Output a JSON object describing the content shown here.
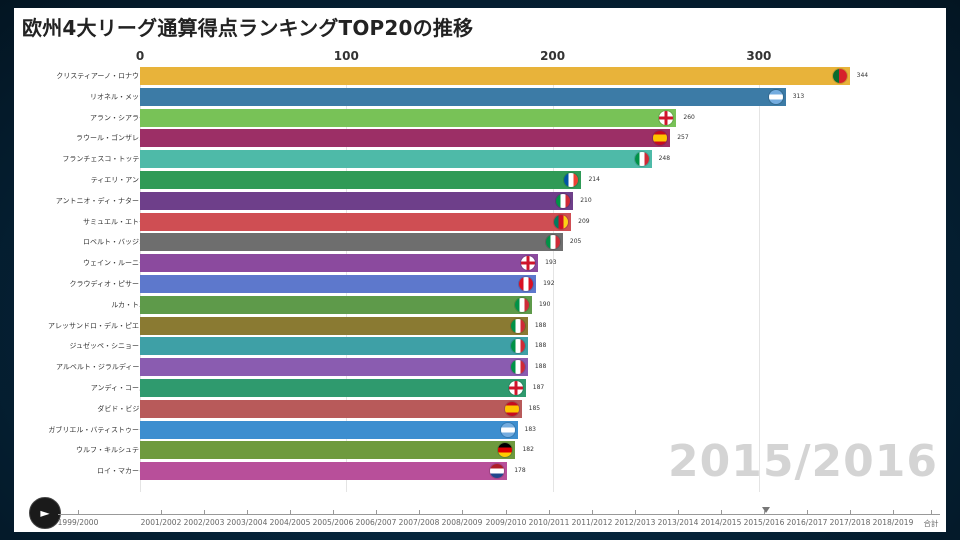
{
  "page": {
    "title": "欧州4大リーグ通算得点ランキングTOP20の推移",
    "current_period": "2015/2016"
  },
  "timeline": {
    "labels": [
      "1999/2000",
      "2001/2002",
      "2002/2003",
      "2003/2004",
      "2004/2005",
      "2005/2006",
      "2006/2007",
      "2007/2008",
      "2008/2009",
      "2009/2010",
      "2010/2011",
      "2011/2012",
      "2012/2013",
      "2013/2014",
      "2014/2015",
      "2015/2016",
      "2016/2017",
      "2017/2018",
      "2018/2019",
      "合計"
    ],
    "play_icon": "play-icon"
  },
  "chart_data": {
    "type": "bar",
    "orientation": "horizontal",
    "title": "欧州4大リーグ通算得点ランキングTOP20の推移",
    "xlim": [
      0,
      344
    ],
    "xticks": [
      0,
      100,
      200,
      300
    ],
    "grid": true,
    "period_label": "2015/2016",
    "categories": [
      "クリスティアーノ・ロナウド",
      "リオネル・メッシ",
      "アラン・シアラー",
      "ラウール・ゴンザレス",
      "フランチェスコ・トッティ",
      "ティエリ・アンリ",
      "アントニオ・ディ・ナターレ",
      "サミュエル・エトー",
      "ロベルト・バッジオ",
      "ウェイン・ルーニー",
      "クラウディオ・ピサーロ",
      "ルカ・トニ",
      "アレッサンドロ・デル・ピエロ",
      "ジュゼッペ・シニョーリ",
      "アルベルト・ジラルディーノ",
      "アンディ・コール",
      "ダビド・ビジャ",
      "ガブリエル・バティストゥータ",
      "ウルフ・キルシュテン",
      "ロイ・マカーイ"
    ],
    "values": [
      344,
      313,
      260,
      257,
      248,
      214,
      210,
      209,
      205,
      193,
      192,
      190,
      188,
      188,
      188,
      187,
      185,
      183,
      182,
      178
    ],
    "colors": [
      "#e8b33a",
      "#3c7ba6",
      "#78c257",
      "#9c2f66",
      "#4ebaa8",
      "#2f9a57",
      "#6e3f8a",
      "#cf4e53",
      "#6e6e6e",
      "#8b4a9e",
      "#5d78cc",
      "#5e9a4a",
      "#8a7a32",
      "#3ea0a6",
      "#8a5cb0",
      "#2f9a6e",
      "#b85a5a",
      "#3d8ecf",
      "#6e9a3e",
      "#b84f9a"
    ],
    "flags": [
      "portugal",
      "argentina",
      "england",
      "spain",
      "italy",
      "france",
      "italy",
      "cameroon",
      "italy",
      "england",
      "peru",
      "italy",
      "italy",
      "italy",
      "italy",
      "england",
      "spain",
      "argentina",
      "germany",
      "netherlands"
    ]
  }
}
